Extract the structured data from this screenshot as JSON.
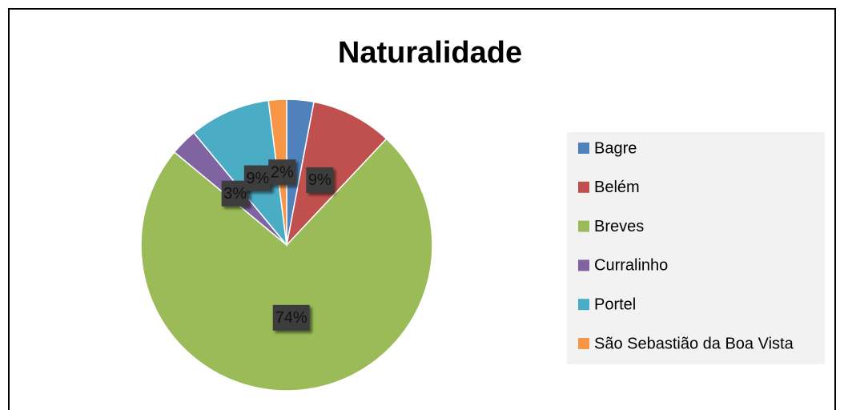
{
  "chart_data": {
    "type": "pie",
    "title": "Naturalidade",
    "categories": [
      "Bagre",
      "Belém",
      "Breves",
      "Curralinho",
      "Portel",
      "São Sebastião da Boa Vista"
    ],
    "values": [
      3,
      9,
      74,
      3,
      9,
      2
    ],
    "value_labels": [
      null,
      "9%",
      "74%",
      "3%",
      "9%",
      "2%"
    ],
    "colors": [
      "#4f81bd",
      "#c0504d",
      "#9bbb59",
      "#8064a2",
      "#4bacc6",
      "#f79646"
    ],
    "legend": "right"
  }
}
